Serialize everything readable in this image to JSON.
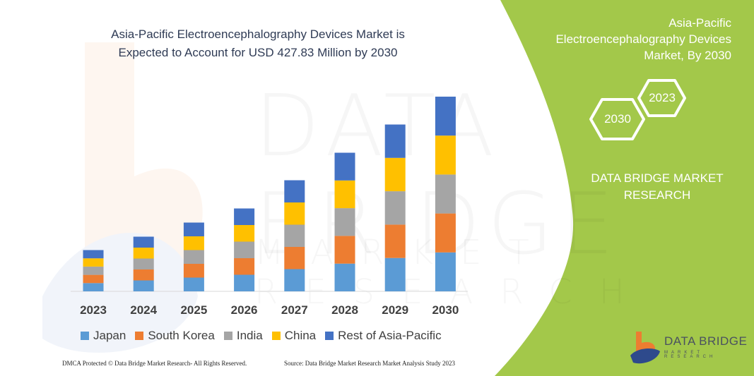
{
  "title": "Asia-Pacific Electroencephalography Devices Market is Expected to Account for USD 427.83 Million by 2030",
  "title_lines": [
    "Asia-Pacific Electroencephalography Devices Market is",
    "Expected to Account for USD 427.83 Million by 2030"
  ],
  "side_panel": {
    "title_lines": [
      "Asia-Pacific",
      "Electroencephalography Devices",
      "Market, By 2030"
    ],
    "hex_years": [
      "2030",
      "2023"
    ],
    "company_lines": [
      "DATA BRIDGE MARKET",
      "RESEARCH"
    ],
    "logo_text": "DATA BRIDGE",
    "logo_subtext": "MARKET RESEARCH",
    "color": "#a3c84a"
  },
  "watermark": {
    "line1": "DATA BRIDGE",
    "line2": "MARKET RESEARCH"
  },
  "footer": {
    "left": "DMCA Protected © Data Bridge Market Research- All Rights Reserved.",
    "right": "Source: Data Bridge Market Research Market Analysis Study 2023"
  },
  "chart_data": {
    "type": "bar",
    "stacked": true,
    "title": "Asia-Pacific Electroencephalography Devices Market is Expected to Account for USD 427.83 Million by 2030",
    "categories": [
      "2023",
      "2024",
      "2025",
      "2026",
      "2027",
      "2028",
      "2029",
      "2030"
    ],
    "series": [
      {
        "name": "Japan",
        "color": "#5b9bd5",
        "values": [
          11.7,
          15.5,
          19.5,
          23.5,
          31.5,
          39.3,
          47.3,
          55.2
        ]
      },
      {
        "name": "South Korea",
        "color": "#ed7d31",
        "values": [
          11.7,
          15.5,
          19.5,
          23.5,
          31.5,
          39.3,
          47.3,
          55.2
        ]
      },
      {
        "name": "India",
        "color": "#a5a5a5",
        "values": [
          11.7,
          15.5,
          19.5,
          23.5,
          31.5,
          39.3,
          47.3,
          55.2
        ]
      },
      {
        "name": "China",
        "color": "#ffc000",
        "values": [
          11.7,
          15.5,
          19.5,
          23.5,
          31.5,
          39.3,
          47.3,
          55.2
        ]
      },
      {
        "name": "Rest of Asia-Pacific",
        "color": "#4472c4",
        "values": [
          11.7,
          15.5,
          19.5,
          23.5,
          31.5,
          39.3,
          47.3,
          55.2
        ]
      }
    ],
    "ylim": [
      0,
      280
    ],
    "y_axis_shown": false,
    "grid": false,
    "legend_position": "bottom"
  }
}
